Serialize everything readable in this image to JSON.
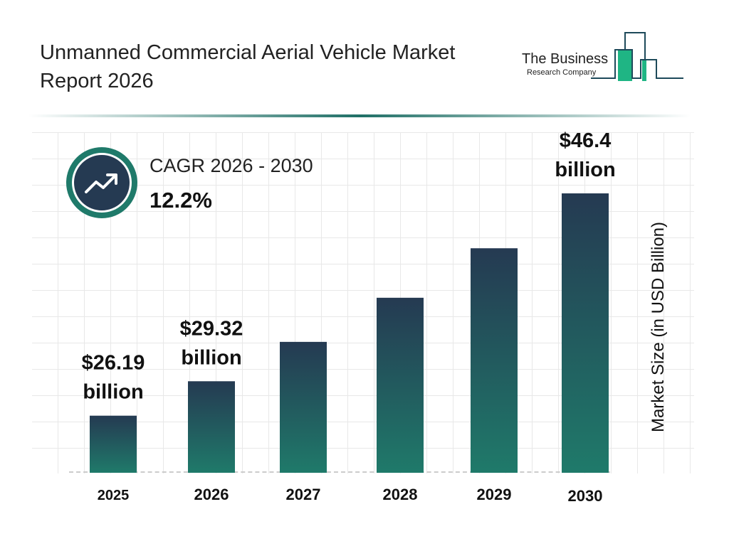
{
  "header": {
    "title": "Unmanned Commercial Aerial Vehicle Market Report 2026"
  },
  "logo": {
    "line1": "The Business",
    "line2": "Research Company"
  },
  "cagr": {
    "label": "CAGR 2026 - 2030",
    "value": "12.2%",
    "icon": "trending-up-icon"
  },
  "colors": {
    "bar_top": "#253a52",
    "bar_bottom": "#1f7a6a",
    "accent": "#1f7a6a"
  },
  "chart_data": {
    "type": "bar",
    "categories": [
      "2025",
      "2026",
      "2027",
      "2028",
      "2029",
      "2030"
    ],
    "values": [
      26.19,
      29.32,
      32.9,
      36.91,
      41.41,
      46.4
    ],
    "data_labels": [
      {
        "index": 0,
        "text": "$26.19 billion"
      },
      {
        "index": 1,
        "text": "$29.32 billion"
      },
      {
        "index": 5,
        "text": "$46.4 billion"
      }
    ],
    "xlabel": "",
    "ylabel": "Market Size (in USD Billion)",
    "grid": true,
    "legend": "none"
  }
}
